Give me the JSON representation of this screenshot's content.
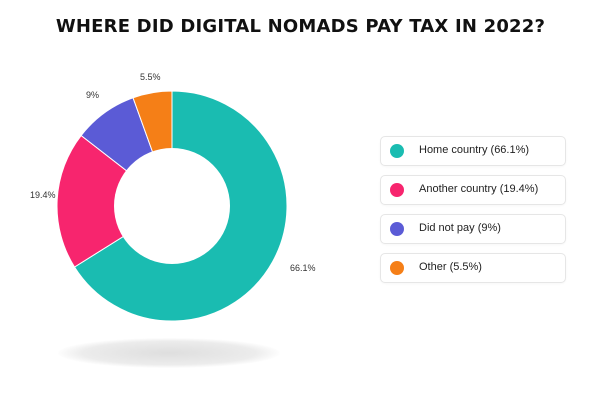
{
  "chart_data": {
    "type": "pie",
    "title": "WHERE DID DIGITAL NOMADS PAY TAX IN 2022?",
    "slices": [
      {
        "label": "Home country",
        "value": 66.1,
        "display": "66.1%",
        "legend": "Home country (66.1%)",
        "color": "#1ABCB1"
      },
      {
        "label": "Another country",
        "value": 19.4,
        "display": "19.4%",
        "legend": "Another country (19.4%)",
        "color": "#F7256E"
      },
      {
        "label": "Did not pay",
        "value": 9,
        "display": "9%",
        "legend": "Did not pay (9%)",
        "color": "#5B5BD6"
      },
      {
        "label": "Other",
        "value": 5.5,
        "display": "5.5%",
        "legend": "Other (5.5%)",
        "color": "#F57F17"
      }
    ],
    "donut": true,
    "legend_position": "right"
  }
}
